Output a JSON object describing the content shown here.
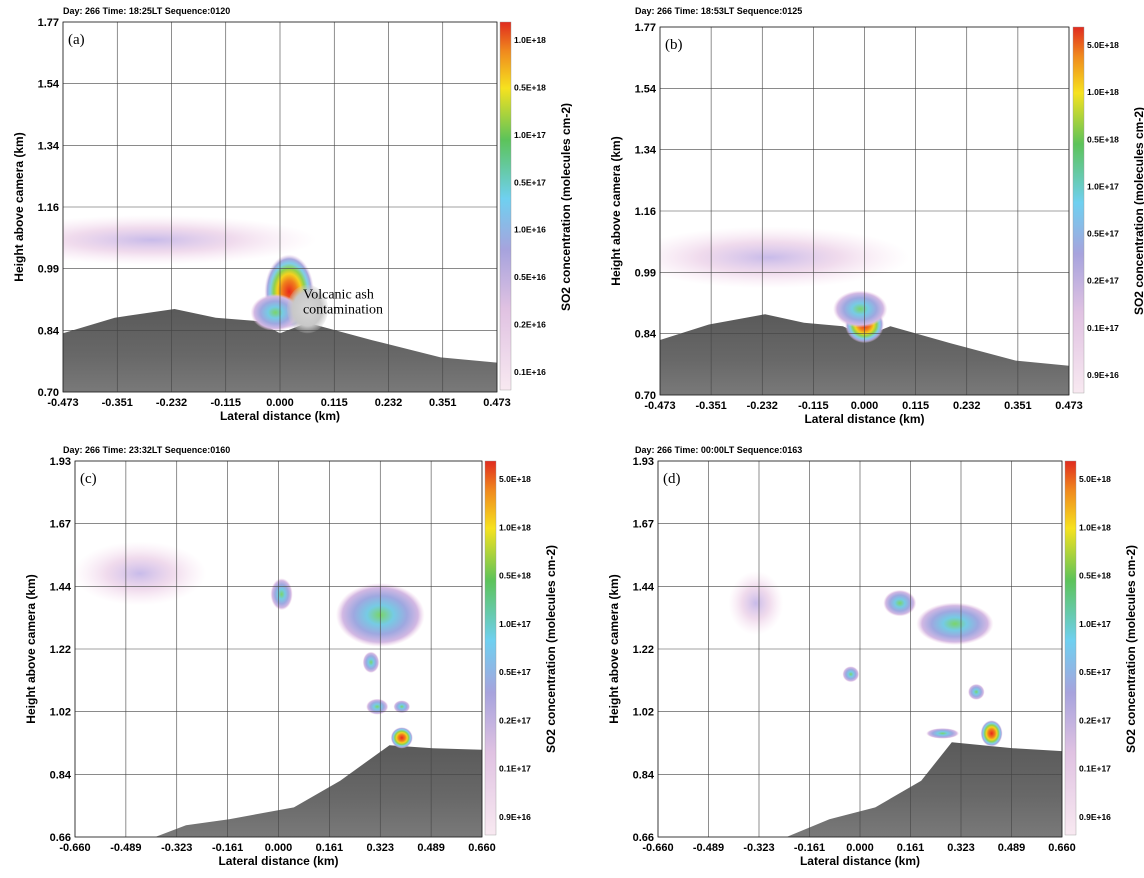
{
  "chart_data": [
    {
      "type": "heatmap",
      "panel_label": "(a)",
      "header": "Day:  266 Time:  18:25LT    Sequence:0120",
      "xlabel": "Lateral distance (km)",
      "ylabel": "Height above camera (km)",
      "colorbar_label": "SO2 concentration (molecules cm-2)",
      "x_ticks": [
        "-0.473",
        "-0.351",
        "-0.232",
        "-0.115",
        "0.000",
        "0.115",
        "0.232",
        "0.351",
        "0.473"
      ],
      "y_ticks": [
        "1.77",
        "1.54",
        "1.34",
        "1.16",
        "0.99",
        "0.84",
        "0.70"
      ],
      "xlim": [
        -0.473,
        0.473
      ],
      "ylim": [
        0.7,
        1.77
      ],
      "colorbar_ticks": [
        "1.0E+18",
        "0.5E+18",
        "1.0E+17",
        "0.5E+17",
        "1.0E+16",
        "0.5E+16",
        "0.2E+16",
        "0.1E+16"
      ],
      "annotation": [
        "Volcanic ash",
        "contamination"
      ],
      "plume": [
        {
          "x": 0.02,
          "y": 0.99,
          "rx": 0.03,
          "ry": 0.06,
          "level": 1.0
        },
        {
          "x": -0.01,
          "y": 0.93,
          "rx": 0.03,
          "ry": 0.03,
          "level": 0.55
        },
        {
          "x": -0.28,
          "y": 1.14,
          "rx": 0.2,
          "ry": 0.04,
          "level": 0.12
        }
      ],
      "ash": {
        "x": 0.06,
        "y": 0.94,
        "rx": 0.045,
        "ry": 0.07
      },
      "mountain": [
        [
          -0.473,
          0.87
        ],
        [
          -0.36,
          0.915
        ],
        [
          -0.23,
          0.94
        ],
        [
          -0.14,
          0.915
        ],
        [
          -0.05,
          0.905
        ],
        [
          0.0,
          0.87
        ],
        [
          0.06,
          0.9
        ],
        [
          0.2,
          0.85
        ],
        [
          0.35,
          0.8
        ],
        [
          0.473,
          0.785
        ]
      ]
    },
    {
      "type": "heatmap",
      "panel_label": "(b)",
      "header": "Day:  266 Time:  18:53LT    Sequence:0125",
      "xlabel": "Lateral distance (km)",
      "ylabel": "Height above camera (km)",
      "colorbar_label": "SO2 concentration (molecules cm-2)",
      "x_ticks": [
        "-0.473",
        "-0.351",
        "-0.232",
        "-0.115",
        "0.000",
        "0.115",
        "0.232",
        "0.351",
        "0.473"
      ],
      "y_ticks": [
        "1.77",
        "1.54",
        "1.34",
        "1.16",
        "0.99",
        "0.84",
        "0.70"
      ],
      "xlim": [
        -0.473,
        0.473
      ],
      "ylim": [
        0.7,
        1.77
      ],
      "colorbar_ticks": [
        "5.0E+18",
        "1.0E+18",
        "0.5E+18",
        "1.0E+17",
        "0.5E+17",
        "0.2E+17",
        "0.1E+17",
        "0.9E+16"
      ],
      "plume": [
        {
          "x": 0.0,
          "y": 0.905,
          "rx": 0.025,
          "ry": 0.03,
          "level": 1.0
        },
        {
          "x": -0.01,
          "y": 0.95,
          "rx": 0.035,
          "ry": 0.03,
          "level": 0.45
        },
        {
          "x": -0.22,
          "y": 1.1,
          "rx": 0.18,
          "ry": 0.05,
          "level": 0.12
        }
      ],
      "mountain": [
        [
          -0.473,
          0.86
        ],
        [
          -0.36,
          0.905
        ],
        [
          -0.23,
          0.935
        ],
        [
          -0.14,
          0.91
        ],
        [
          -0.05,
          0.9
        ],
        [
          0.0,
          0.87
        ],
        [
          0.06,
          0.9
        ],
        [
          0.2,
          0.85
        ],
        [
          0.35,
          0.8
        ],
        [
          0.473,
          0.785
        ]
      ]
    },
    {
      "type": "heatmap",
      "panel_label": "(c)",
      "header": "Day:  266 Time:  23:32LT    Sequence:0160",
      "xlabel": "Lateral distance (km)",
      "ylabel": "Height above camera (km)",
      "colorbar_label": "SO2 concentration (molecules cm-2)",
      "x_ticks": [
        "-0.660",
        "-0.489",
        "-0.323",
        "-0.161",
        "0.000",
        "0.161",
        "0.323",
        "0.489",
        "0.660"
      ],
      "y_ticks": [
        "1.93",
        "1.67",
        "1.44",
        "1.22",
        "1.02",
        "0.84",
        "0.66"
      ],
      "xlim": [
        -0.66,
        0.66
      ],
      "ylim": [
        0.66,
        1.93
      ],
      "colorbar_ticks": [
        "5.0E+18",
        "1.0E+18",
        "0.5E+18",
        "1.0E+17",
        "0.5E+17",
        "0.2E+17",
        "0.1E+17",
        "0.9E+16"
      ],
      "plume": [
        {
          "x": 0.4,
          "y": 0.995,
          "rx": 0.02,
          "ry": 0.02,
          "level": 1.0
        },
        {
          "x": 0.33,
          "y": 1.41,
          "rx": 0.08,
          "ry": 0.06,
          "level": 0.45
        },
        {
          "x": 0.01,
          "y": 1.48,
          "rx": 0.02,
          "ry": 0.03,
          "level": 0.5
        },
        {
          "x": 0.32,
          "y": 1.1,
          "rx": 0.02,
          "ry": 0.015,
          "level": 0.4
        },
        {
          "x": 0.4,
          "y": 1.1,
          "rx": 0.015,
          "ry": 0.012,
          "level": 0.3
        },
        {
          "x": 0.3,
          "y": 1.25,
          "rx": 0.015,
          "ry": 0.02,
          "level": 0.3
        },
        {
          "x": -0.45,
          "y": 1.55,
          "rx": 0.12,
          "ry": 0.06,
          "level": 0.12
        }
      ],
      "mountain": [
        [
          -0.4,
          0.66
        ],
        [
          -0.3,
          0.7
        ],
        [
          -0.16,
          0.72
        ],
        [
          0.05,
          0.76
        ],
        [
          0.2,
          0.85
        ],
        [
          0.36,
          0.97
        ],
        [
          0.5,
          0.96
        ],
        [
          0.66,
          0.955
        ]
      ]
    },
    {
      "type": "heatmap",
      "panel_label": "(d)",
      "header": "Day:  266 Time:  00:00LT    Sequence:0163",
      "xlabel": "Lateral distance (km)",
      "ylabel": "Height above camera (km)",
      "colorbar_label": "SO2 concentration (molecules cm-2)",
      "x_ticks": [
        "-0.660",
        "-0.489",
        "-0.323",
        "-0.161",
        "0.000",
        "0.161",
        "0.323",
        "0.489",
        "0.660"
      ],
      "y_ticks": [
        "1.93",
        "1.67",
        "1.44",
        "1.22",
        "1.02",
        "0.84",
        "0.66"
      ],
      "xlim": [
        -0.66,
        0.66
      ],
      "ylim": [
        0.66,
        1.93
      ],
      "colorbar_ticks": [
        "5.0E+18",
        "1.0E+18",
        "0.5E+18",
        "1.0E+17",
        "0.5E+17",
        "0.2E+17",
        "0.1E+17",
        "0.9E+16"
      ],
      "plume": [
        {
          "x": 0.43,
          "y": 1.01,
          "rx": 0.02,
          "ry": 0.025,
          "level": 1.0
        },
        {
          "x": 0.31,
          "y": 1.38,
          "rx": 0.07,
          "ry": 0.04,
          "level": 0.5
        },
        {
          "x": 0.13,
          "y": 1.45,
          "rx": 0.03,
          "ry": 0.025,
          "level": 0.3
        },
        {
          "x": 0.27,
          "y": 1.01,
          "rx": 0.03,
          "ry": 0.01,
          "level": 0.5
        },
        {
          "x": 0.38,
          "y": 1.15,
          "rx": 0.015,
          "ry": 0.015,
          "level": 0.3
        },
        {
          "x": -0.03,
          "y": 1.21,
          "rx": 0.015,
          "ry": 0.015,
          "level": 0.3
        },
        {
          "x": -0.34,
          "y": 1.45,
          "rx": 0.05,
          "ry": 0.06,
          "level": 0.2
        }
      ],
      "mountain": [
        [
          -0.24,
          0.66
        ],
        [
          -0.1,
          0.72
        ],
        [
          0.05,
          0.76
        ],
        [
          0.2,
          0.85
        ],
        [
          0.3,
          0.98
        ],
        [
          0.5,
          0.96
        ],
        [
          0.66,
          0.95
        ]
      ]
    }
  ]
}
